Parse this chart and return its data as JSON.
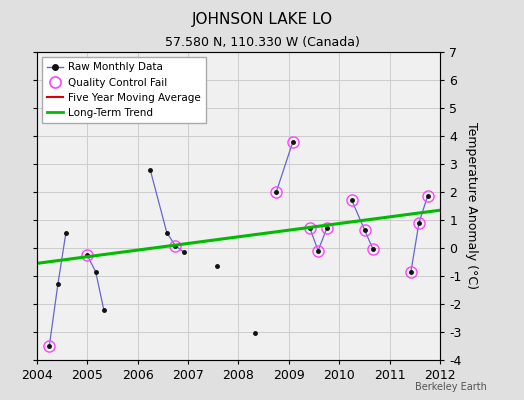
{
  "title": "JOHNSON LAKE LO",
  "subtitle": "57.580 N, 110.330 W (Canada)",
  "watermark": "Berkeley Earth",
  "ylabel": "Temperature Anomaly (°C)",
  "xlim": [
    2004,
    2012
  ],
  "ylim": [
    -4,
    7
  ],
  "yticks": [
    -4,
    -3,
    -2,
    -1,
    0,
    1,
    2,
    3,
    4,
    5,
    6,
    7
  ],
  "xticks": [
    2004,
    2005,
    2006,
    2007,
    2008,
    2009,
    2010,
    2011,
    2012
  ],
  "background_color": "#e0e0e0",
  "plot_bg_color": "#f0f0f0",
  "connected_segments": [
    [
      [
        2004.25,
        -3.5
      ],
      [
        2004.42,
        -1.3
      ],
      [
        2004.58,
        0.55
      ]
    ],
    [
      [
        2005.0,
        -0.25
      ],
      [
        2005.17,
        -0.85
      ],
      [
        2005.33,
        -2.2
      ]
    ],
    [
      [
        2006.25,
        2.8
      ],
      [
        2006.58,
        0.55
      ],
      [
        2006.75,
        0.08
      ],
      [
        2006.92,
        -0.15
      ]
    ],
    [
      [
        2008.75,
        2.0
      ],
      [
        2009.08,
        3.8
      ]
    ],
    [
      [
        2009.42,
        0.7
      ],
      [
        2009.58,
        -0.1
      ],
      [
        2009.75,
        0.7
      ]
    ],
    [
      [
        2010.25,
        1.7
      ],
      [
        2010.5,
        0.65
      ],
      [
        2010.67,
        -0.05
      ]
    ],
    [
      [
        2011.42,
        -0.85
      ],
      [
        2011.58,
        0.9
      ],
      [
        2011.75,
        1.85
      ]
    ]
  ],
  "qc_fail": [
    [
      2004.25,
      -3.5
    ],
    [
      2005.0,
      -0.25
    ],
    [
      2006.75,
      0.08
    ],
    [
      2009.08,
      3.8
    ],
    [
      2008.75,
      2.0
    ],
    [
      2009.42,
      0.7
    ],
    [
      2009.58,
      -0.1
    ],
    [
      2009.75,
      0.7
    ],
    [
      2010.25,
      1.7
    ],
    [
      2010.5,
      0.65
    ],
    [
      2010.67,
      -0.05
    ],
    [
      2011.42,
      -0.85
    ],
    [
      2011.58,
      0.9
    ],
    [
      2011.75,
      1.85
    ]
  ],
  "isolated_points": [
    [
      2007.58,
      -0.65
    ],
    [
      2008.33,
      -3.05
    ]
  ],
  "trend_line": [
    [
      2004,
      -0.55
    ],
    [
      2012,
      1.35
    ]
  ],
  "trend_color": "#00bb00",
  "trend_linewidth": 2.2,
  "raw_line_color": "#6666cc",
  "raw_dot_color": "#111111",
  "qc_color": "#ff44ff",
  "five_year_avg_color": "#dd0000",
  "grid_color": "#cccccc",
  "title_fontsize": 11,
  "subtitle_fontsize": 9,
  "tick_fontsize": 9,
  "ylabel_fontsize": 9
}
